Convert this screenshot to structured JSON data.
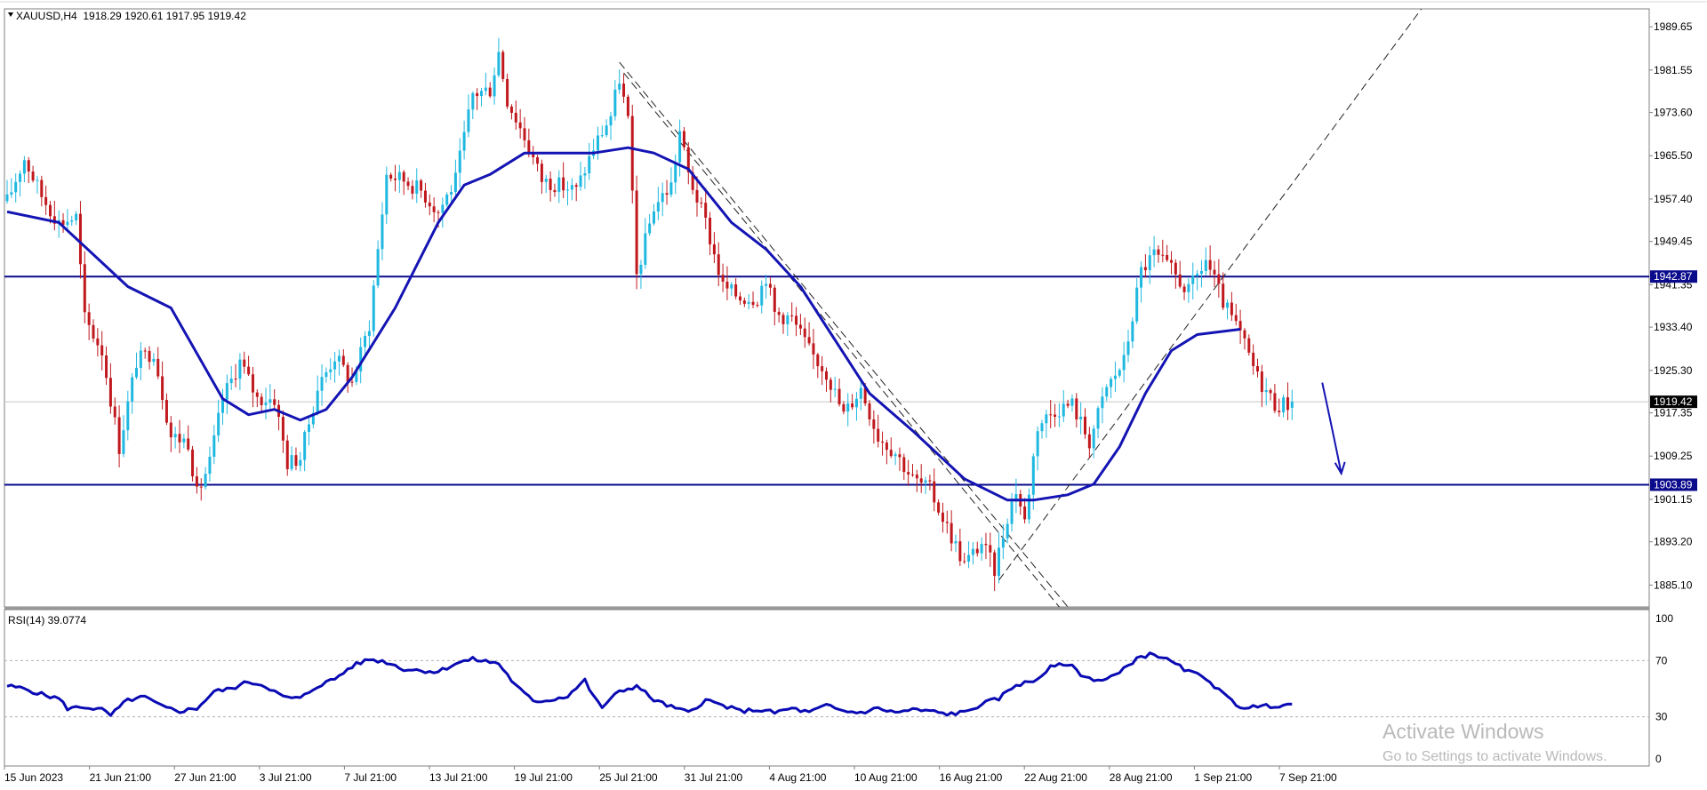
{
  "header": {
    "symbol_line": "XAUUSD,H4  1918.29 1920.61 1917.95 1919.42"
  },
  "rsi_header": "RSI(14) 39.0774",
  "watermark": {
    "title": "Activate Windows",
    "subtitle": "Go to Settings to activate Windows."
  },
  "colors": {
    "bull": "#1fb8e0",
    "bear": "#c0181d",
    "ma": "#1414b4",
    "levels": "#0a0a8c",
    "rsi": "#0a0ab4",
    "grid": "#cfcfcf"
  },
  "chart_data": [
    {
      "type": "candlestick",
      "symbol": "XAUUSD",
      "timeframe": "H4",
      "ohlc_current": {
        "open": 1918.29,
        "high": 1920.61,
        "low": 1917.95,
        "close": 1919.42
      },
      "ylim": [
        1881.0,
        1993.0
      ],
      "y_tick_labels": [
        "1989.65",
        "1981.55",
        "1973.60",
        "1965.50",
        "1957.40",
        "1949.45",
        "1941.35",
        "1933.40",
        "1925.30",
        "1917.35",
        "1909.25",
        "1901.15",
        "1893.20",
        "1885.10"
      ],
      "y_ticks": [
        1989.65,
        1981.55,
        1973.6,
        1965.5,
        1957.4,
        1949.45,
        1941.35,
        1933.4,
        1925.3,
        1917.35,
        1909.25,
        1901.15,
        1893.2,
        1885.1
      ],
      "x_tick_labels": [
        "15 Jun 2023",
        "21 Jun 21:00",
        "27 Jun 21:00",
        "3 Jul 21:00",
        "7 Jul 21:00",
        "13 Jul 21:00",
        "19 Jul 21:00",
        "25 Jul 21:00",
        "31 Jul 21:00",
        "4 Aug 21:00",
        "10 Aug 21:00",
        "16 Aug 21:00",
        "22 Aug 21:00",
        "28 Aug 21:00",
        "1 Sep 21:00",
        "7 Sep 21:00"
      ],
      "price_path": [
        [
          0,
          1957
        ],
        [
          4,
          1965
        ],
        [
          8,
          1958
        ],
        [
          12,
          1953
        ],
        [
          16,
          1954
        ],
        [
          18,
          1935
        ],
        [
          22,
          1929
        ],
        [
          26,
          1911
        ],
        [
          30,
          1927
        ],
        [
          34,
          1929
        ],
        [
          38,
          1913
        ],
        [
          42,
          1912
        ],
        [
          44,
          1902
        ],
        [
          47,
          1908
        ],
        [
          50,
          1920
        ],
        [
          54,
          1927
        ],
        [
          58,
          1920
        ],
        [
          62,
          1920
        ],
        [
          65,
          1908
        ],
        [
          68,
          1909
        ],
        [
          72,
          1922
        ],
        [
          76,
          1928
        ],
        [
          80,
          1923
        ],
        [
          84,
          1934
        ],
        [
          88,
          1962
        ],
        [
          92,
          1961
        ],
        [
          96,
          1959
        ],
        [
          100,
          1955
        ],
        [
          104,
          1961
        ],
        [
          108,
          1977
        ],
        [
          112,
          1978
        ],
        [
          114,
          1985
        ],
        [
          116,
          1976
        ],
        [
          120,
          1969
        ],
        [
          124,
          1961
        ],
        [
          128,
          1960
        ],
        [
          132,
          1959
        ],
        [
          136,
          1967
        ],
        [
          140,
          1973
        ],
        [
          142,
          1980
        ],
        [
          144,
          1972
        ],
        [
          146,
          1943
        ],
        [
          150,
          1956
        ],
        [
          154,
          1960
        ],
        [
          156,
          1970
        ],
        [
          158,
          1962
        ],
        [
          162,
          1953
        ],
        [
          166,
          1941
        ],
        [
          170,
          1939
        ],
        [
          174,
          1939
        ],
        [
          176,
          1943
        ],
        [
          178,
          1936
        ],
        [
          182,
          1935
        ],
        [
          186,
          1929
        ],
        [
          190,
          1925
        ],
        [
          194,
          1917
        ],
        [
          198,
          1922
        ],
        [
          202,
          1913
        ],
        [
          206,
          1910
        ],
        [
          210,
          1905
        ],
        [
          214,
          1903
        ],
        [
          218,
          1896
        ],
        [
          222,
          1889
        ],
        [
          226,
          1893
        ],
        [
          229,
          1888
        ],
        [
          232,
          1898
        ],
        [
          234,
          1903
        ],
        [
          236,
          1897
        ],
        [
          239,
          1915
        ],
        [
          243,
          1918
        ],
        [
          247,
          1919
        ],
        [
          251,
          1912
        ],
        [
          255,
          1922
        ],
        [
          259,
          1927
        ],
        [
          263,
          1944
        ],
        [
          266,
          1947
        ],
        [
          270,
          1944
        ],
        [
          274,
          1940
        ],
        [
          278,
          1946
        ],
        [
          282,
          1938
        ],
        [
          286,
          1932
        ],
        [
          290,
          1924
        ],
        [
          294,
          1919
        ],
        [
          298,
          1919
        ]
      ],
      "ma_path": [
        [
          0,
          1955
        ],
        [
          12,
          1953
        ],
        [
          28,
          1941
        ],
        [
          38,
          1937
        ],
        [
          50,
          1920
        ],
        [
          56,
          1917
        ],
        [
          62,
          1918
        ],
        [
          68,
          1916
        ],
        [
          74,
          1918
        ],
        [
          80,
          1924
        ],
        [
          90,
          1937
        ],
        [
          100,
          1953
        ],
        [
          106,
          1960
        ],
        [
          112,
          1962
        ],
        [
          120,
          1966
        ],
        [
          136,
          1966
        ],
        [
          144,
          1967
        ],
        [
          150,
          1966
        ],
        [
          158,
          1963
        ],
        [
          168,
          1953
        ],
        [
          176,
          1948
        ],
        [
          184,
          1941
        ],
        [
          192,
          1931
        ],
        [
          200,
          1921
        ],
        [
          210,
          1914
        ],
        [
          222,
          1905
        ],
        [
          232,
          1901
        ],
        [
          238,
          1901
        ],
        [
          246,
          1902
        ],
        [
          252,
          1904
        ],
        [
          258,
          1911
        ],
        [
          264,
          1921
        ],
        [
          270,
          1929
        ],
        [
          276,
          1932
        ],
        [
          286,
          1933
        ]
      ],
      "horizontal_levels": [
        {
          "value": 1942.87,
          "label": "1942.87"
        },
        {
          "value": 1903.89,
          "label": "1903.89"
        }
      ],
      "current_price_label": "1919.42"
    },
    {
      "type": "line",
      "series": [
        {
          "name": "RSI(14)",
          "points": [
            [
              0,
              52
            ],
            [
              4,
              50
            ],
            [
              8,
              46
            ],
            [
              12,
              43
            ],
            [
              14,
              36
            ],
            [
              18,
              37
            ],
            [
              22,
              35
            ],
            [
              24,
              31
            ],
            [
              28,
              42
            ],
            [
              32,
              44
            ],
            [
              36,
              37
            ],
            [
              40,
              34
            ],
            [
              44,
              36
            ],
            [
              48,
              48
            ],
            [
              52,
              50
            ],
            [
              56,
              55
            ],
            [
              60,
              52
            ],
            [
              64,
              44
            ],
            [
              68,
              43
            ],
            [
              72,
              52
            ],
            [
              76,
              57
            ],
            [
              80,
              66
            ],
            [
              84,
              71
            ],
            [
              88,
              69
            ],
            [
              92,
              64
            ],
            [
              96,
              63
            ],
            [
              100,
              62
            ],
            [
              104,
              68
            ],
            [
              108,
              71
            ],
            [
              112,
              69
            ],
            [
              114,
              68
            ],
            [
              118,
              52
            ],
            [
              122,
              41
            ],
            [
              126,
              42
            ],
            [
              130,
              45
            ],
            [
              134,
              56
            ],
            [
              136,
              44
            ],
            [
              138,
              37
            ],
            [
              142,
              48
            ],
            [
              146,
              52
            ],
            [
              150,
              42
            ],
            [
              154,
              37
            ],
            [
              158,
              33
            ],
            [
              162,
              42
            ],
            [
              166,
              38
            ],
            [
              170,
              34
            ],
            [
              174,
              35
            ],
            [
              178,
              33
            ],
            [
              182,
              36
            ],
            [
              186,
              33
            ],
            [
              190,
              38
            ],
            [
              194,
              34
            ],
            [
              198,
              33
            ],
            [
              202,
              36
            ],
            [
              206,
              33
            ],
            [
              210,
              35
            ],
            [
              214,
              34
            ],
            [
              218,
              32
            ],
            [
              222,
              33
            ],
            [
              226,
              39
            ],
            [
              230,
              43
            ],
            [
              234,
              53
            ],
            [
              238,
              55
            ],
            [
              242,
              65
            ],
            [
              246,
              68
            ],
            [
              250,
              58
            ],
            [
              254,
              56
            ],
            [
              258,
              61
            ],
            [
              262,
              72
            ],
            [
              266,
              75
            ],
            [
              270,
              69
            ],
            [
              274,
              62
            ],
            [
              278,
              58
            ],
            [
              282,
              46
            ],
            [
              286,
              37
            ],
            [
              290,
              37
            ],
            [
              294,
              38
            ],
            [
              298,
              39
            ]
          ]
        }
      ],
      "ylim": [
        0,
        100
      ],
      "y_tick_labels": [
        "100",
        "70",
        "30",
        "0"
      ],
      "y_ticks": [
        100,
        70,
        30,
        0
      ],
      "reference_lines": [
        70,
        30
      ]
    }
  ]
}
